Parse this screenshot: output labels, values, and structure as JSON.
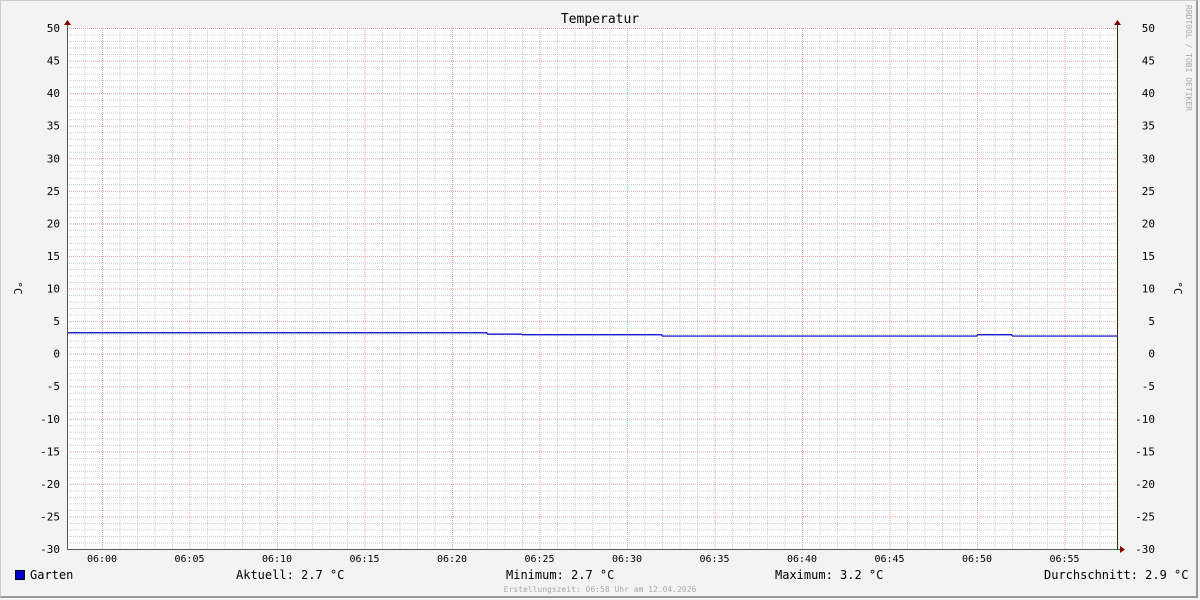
{
  "chart_data": {
    "type": "line",
    "title": "Temperatur",
    "ylabel": "°C",
    "ylabel_right": "°C",
    "ylim": [
      -30,
      50
    ],
    "y_ticks": [
      50,
      45,
      40,
      35,
      30,
      25,
      20,
      15,
      10,
      5,
      0,
      -5,
      -10,
      -15,
      -20,
      -25,
      -30
    ],
    "xlim": [
      "05:58",
      "06:58"
    ],
    "x_ticks": [
      "06:00",
      "06:05",
      "06:10",
      "06:15",
      "06:20",
      "06:25",
      "06:30",
      "06:35",
      "06:40",
      "06:45",
      "06:50",
      "06:55"
    ],
    "grid": true,
    "series": [
      {
        "name": "Garten",
        "color": "#0000cc",
        "x": [
          "05:58",
          "06:22",
          "06:24",
          "06:32",
          "06:50",
          "06:52",
          "06:58"
        ],
        "values": [
          3.2,
          3.0,
          2.9,
          2.7,
          2.9,
          2.7,
          2.7
        ]
      }
    ],
    "legend": {
      "position": "bottom",
      "entries": [
        "Garten"
      ]
    },
    "stats": {
      "current": "Aktuell: 2.7 °C",
      "min": "Minimum: 2.7 °C",
      "max": "Maximum: 3.2 °C",
      "avg": "Durchschnitt: 2.9 °C"
    }
  },
  "watermark": "RRDTOOL / TOBI OETIKER",
  "credit": "Erstellungszeit: 06:58 Uhr am 12.04.2026",
  "colors": {
    "major_grid": "#e8a0a0",
    "minor_grid": "#cccccc",
    "axis": "#800000"
  }
}
